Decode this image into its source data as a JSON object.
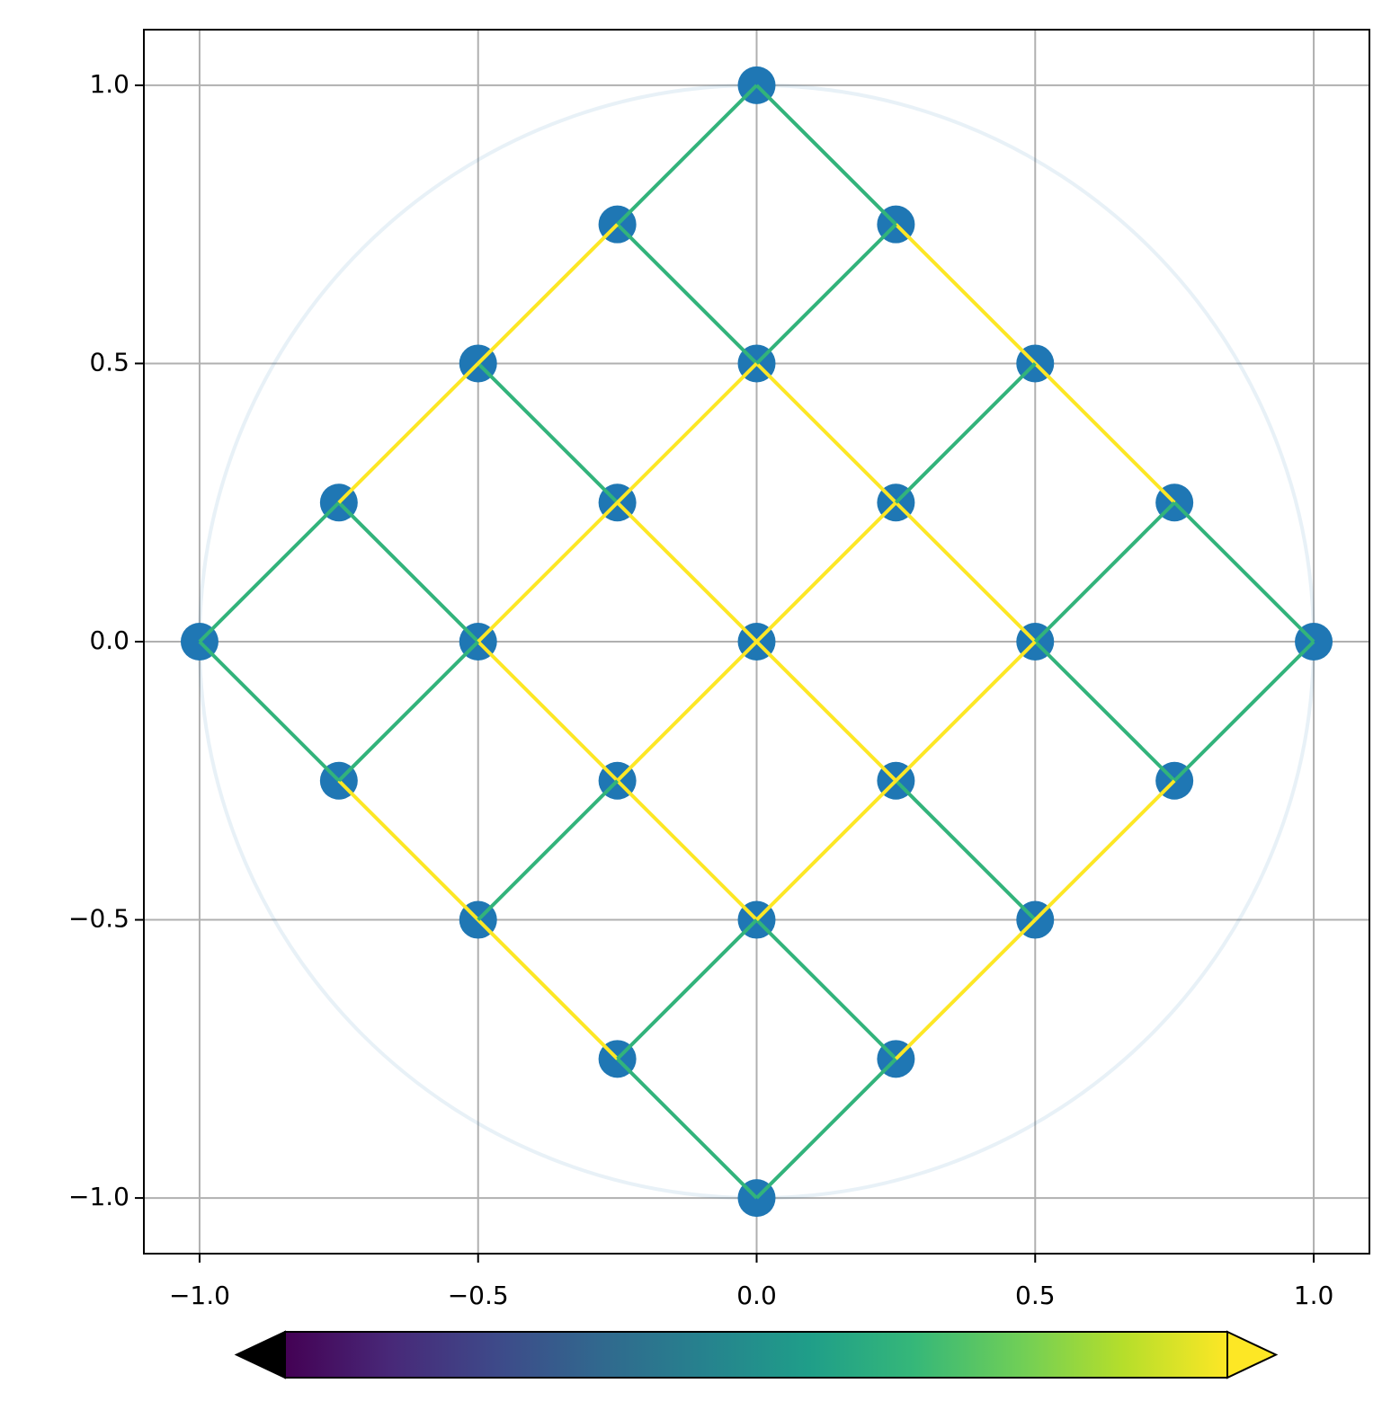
{
  "chart_data": {
    "type": "graph",
    "x": [
      0,
      -0.25,
      0.25,
      -0.5,
      0,
      0.5,
      -0.75,
      -0.25,
      0.25,
      0.75,
      -1,
      -0.5,
      0,
      0.5,
      1,
      -0.75,
      -0.25,
      0.25,
      0.75,
      -0.5,
      0,
      0.5,
      -0.25,
      0.25,
      0
    ],
    "y": [
      1,
      0.75,
      0.75,
      0.5,
      0.5,
      0.5,
      0.25,
      0.25,
      0.25,
      0.25,
      0,
      0,
      0,
      0,
      0,
      -0.25,
      -0.25,
      -0.25,
      -0.25,
      -0.5,
      -0.5,
      -0.5,
      -0.75,
      -0.75,
      -1
    ],
    "point_color": "#1f77b4",
    "segments": [
      {
        "x": [
          0,
          0.25
        ],
        "y": [
          1,
          0.75
        ],
        "value": 0.65
      },
      {
        "x": [
          0.25,
          0.5
        ],
        "y": [
          0.75,
          0.5
        ],
        "value": 1
      },
      {
        "x": [
          0.5,
          0.75
        ],
        "y": [
          0.5,
          0.25
        ],
        "value": 1
      },
      {
        "x": [
          0.75,
          1
        ],
        "y": [
          0.25,
          0
        ],
        "value": 0.65
      },
      {
        "x": [
          -0.25,
          0
        ],
        "y": [
          0.75,
          0.5
        ],
        "value": 0.65
      },
      {
        "x": [
          0,
          0.25
        ],
        "y": [
          0.5,
          0.25
        ],
        "value": 1
      },
      {
        "x": [
          0.25,
          0.5
        ],
        "y": [
          0.25,
          0
        ],
        "value": 1
      },
      {
        "x": [
          0.5,
          0.75
        ],
        "y": [
          0,
          -0.25
        ],
        "value": 0.65
      },
      {
        "x": [
          -0.5,
          -0.25
        ],
        "y": [
          0.5,
          0.25
        ],
        "value": 0.65
      },
      {
        "x": [
          -0.25,
          0
        ],
        "y": [
          0.25,
          0
        ],
        "value": 1
      },
      {
        "x": [
          0,
          0.25
        ],
        "y": [
          0,
          -0.25
        ],
        "value": 1
      },
      {
        "x": [
          0.25,
          0.5
        ],
        "y": [
          -0.25,
          -0.5
        ],
        "value": 0.65
      },
      {
        "x": [
          -0.75,
          -0.5
        ],
        "y": [
          0.25,
          0
        ],
        "value": 0.65
      },
      {
        "x": [
          -0.5,
          -0.25
        ],
        "y": [
          0,
          -0.25
        ],
        "value": 1
      },
      {
        "x": [
          -0.25,
          0
        ],
        "y": [
          -0.25,
          -0.5
        ],
        "value": 1
      },
      {
        "x": [
          0,
          0.25
        ],
        "y": [
          -0.5,
          -0.75
        ],
        "value": 0.65
      },
      {
        "x": [
          -1,
          -0.75
        ],
        "y": [
          0,
          -0.25
        ],
        "value": 0.65
      },
      {
        "x": [
          -0.75,
          -0.5
        ],
        "y": [
          -0.25,
          -0.5
        ],
        "value": 1
      },
      {
        "x": [
          -0.5,
          -0.25
        ],
        "y": [
          -0.5,
          -0.75
        ],
        "value": 1
      },
      {
        "x": [
          -0.25,
          0
        ],
        "y": [
          -0.75,
          -1
        ],
        "value": 0.65
      },
      {
        "x": [
          -1,
          -0.75
        ],
        "y": [
          0,
          0.25
        ],
        "value": 0.65
      },
      {
        "x": [
          -0.75,
          -0.5
        ],
        "y": [
          0.25,
          0.5
        ],
        "value": 1
      },
      {
        "x": [
          -0.5,
          -0.25
        ],
        "y": [
          0.5,
          0.75
        ],
        "value": 1
      },
      {
        "x": [
          -0.25,
          0
        ],
        "y": [
          0.75,
          1
        ],
        "value": 0.65
      },
      {
        "x": [
          -0.75,
          -0.5
        ],
        "y": [
          -0.25,
          0
        ],
        "value": 0.65
      },
      {
        "x": [
          -0.5,
          -0.25
        ],
        "y": [
          0,
          0.25
        ],
        "value": 1
      },
      {
        "x": [
          -0.25,
          0
        ],
        "y": [
          0.25,
          0.5
        ],
        "value": 1
      },
      {
        "x": [
          0,
          0.25
        ],
        "y": [
          0.5,
          0.75
        ],
        "value": 0.65
      },
      {
        "x": [
          -0.5,
          -0.25
        ],
        "y": [
          -0.5,
          -0.25
        ],
        "value": 0.65
      },
      {
        "x": [
          -0.25,
          0
        ],
        "y": [
          -0.25,
          0
        ],
        "value": 1
      },
      {
        "x": [
          0,
          0.25
        ],
        "y": [
          0,
          0.25
        ],
        "value": 1
      },
      {
        "x": [
          0.25,
          0.5
        ],
        "y": [
          0.25,
          0.5
        ],
        "value": 0.65
      },
      {
        "x": [
          -0.25,
          0
        ],
        "y": [
          -0.75,
          -0.5
        ],
        "value": 0.65
      },
      {
        "x": [
          0,
          0.25
        ],
        "y": [
          -0.5,
          -0.25
        ],
        "value": 1
      },
      {
        "x": [
          0.25,
          0.5
        ],
        "y": [
          -0.25,
          0
        ],
        "value": 1
      },
      {
        "x": [
          0.5,
          0.75
        ],
        "y": [
          0,
          0.25
        ],
        "value": 0.65
      },
      {
        "x": [
          0,
          0.25
        ],
        "y": [
          -1,
          -0.75
        ],
        "value": 0.65
      },
      {
        "x": [
          0.25,
          0.5
        ],
        "y": [
          -0.75,
          -0.5
        ],
        "value": 1
      },
      {
        "x": [
          0.5,
          0.75
        ],
        "y": [
          -0.5,
          -0.25
        ],
        "value": 1
      },
      {
        "x": [
          0.75,
          1
        ],
        "y": [
          -0.25,
          0
        ],
        "value": 0.65
      }
    ],
    "circle": {
      "radius": 1,
      "color": "#1f77b4",
      "opacity": 0.1
    },
    "xlim": [
      -1.1,
      1.1
    ],
    "ylim": [
      -1.1,
      1.1
    ],
    "xticks": [
      {
        "value": -1,
        "label": "−1.0"
      },
      {
        "value": -0.5,
        "label": "−0.5"
      },
      {
        "value": 0,
        "label": "0.0"
      },
      {
        "value": 0.5,
        "label": "0.5"
      },
      {
        "value": 1,
        "label": "1.0"
      }
    ],
    "yticks": [
      {
        "value": -1,
        "label": "−1.0"
      },
      {
        "value": -0.5,
        "label": "−0.5"
      },
      {
        "value": 0,
        "label": "0.0"
      },
      {
        "value": 0.5,
        "label": "0.5"
      },
      {
        "value": 1,
        "label": "1.0"
      }
    ],
    "grid": true,
    "colorbar": {
      "cmap": "viridis",
      "clim": [
        0,
        1
      ],
      "extend": "both",
      "under_color": "#000000",
      "over_color": "#fde725",
      "orientation": "horizontal"
    }
  }
}
